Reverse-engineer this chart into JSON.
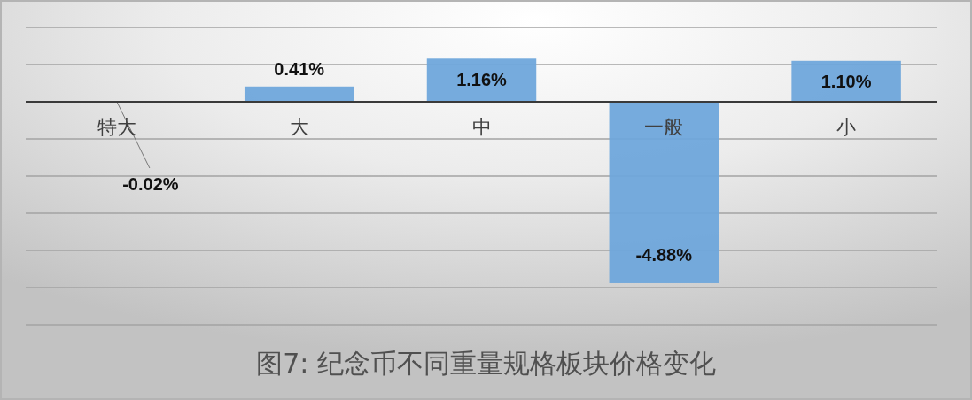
{
  "chart_data": {
    "type": "bar",
    "title": "图7: 纪念币不同重量规格板块价格变化",
    "categories": [
      "特大",
      "大",
      "中",
      "一般",
      "小"
    ],
    "values": [
      -0.02,
      0.41,
      1.16,
      -4.88,
      1.1
    ],
    "value_labels": [
      "-0.02%",
      "0.41%",
      "1.16%",
      "-4.88%",
      "1.10%"
    ],
    "color": "#6fa7db",
    "ylim": [
      -6,
      2
    ],
    "yticks": [
      {
        "value": -6,
        "label": null
      },
      {
        "value": -5,
        "label": null
      },
      {
        "value": -4,
        "label": null
      },
      {
        "value": -3,
        "label": null
      },
      {
        "value": -2,
        "label": null
      },
      {
        "value": -1,
        "label": null
      },
      {
        "value": 0,
        "label": null
      },
      {
        "value": 1,
        "label": null
      },
      {
        "value": 2,
        "label": null
      }
    ],
    "grid": "y",
    "tick_labels": "x"
  }
}
